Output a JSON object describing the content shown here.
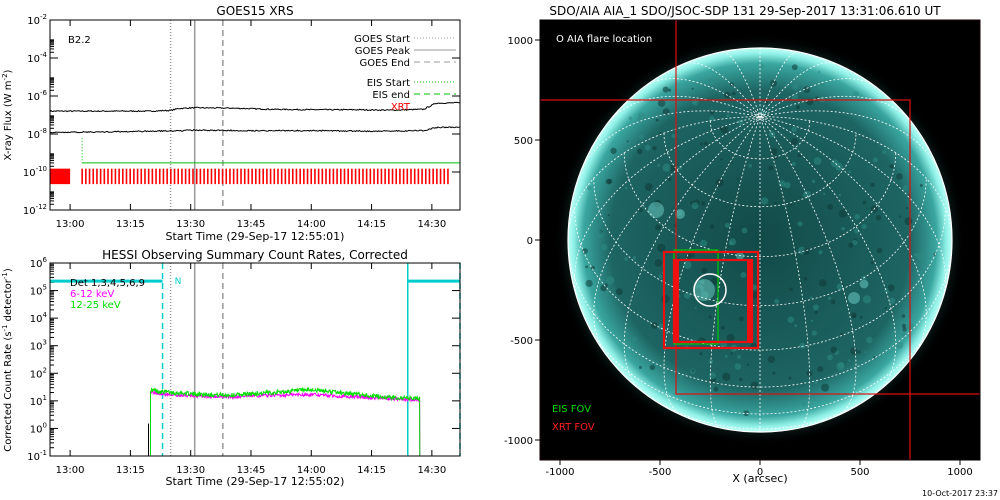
{
  "footer_timestamp": "10-Oct-2017 23:37",
  "chart_data": [
    {
      "id": "goes",
      "type": "line",
      "title": "GOES15 XRS",
      "xlabel": "Start Time (29-Sep-17 12:55:01)",
      "ylabel_main": "X-ray Flux (W m",
      "ylabel_sup": "-2",
      "ylabel_end": ")",
      "flare_class": "B2.2",
      "x_range": [
        "12:55",
        "14:37"
      ],
      "ylim": [
        1e-12,
        0.01
      ],
      "y_scale": "log",
      "x_ticks": [
        "13:00",
        "13:15",
        "13:30",
        "13:45",
        "14:00",
        "14:15",
        "14:30"
      ],
      "y_ticks": [
        {
          "base": "10",
          "exp": "-2"
        },
        {
          "base": "10",
          "exp": "-4"
        },
        {
          "base": "10",
          "exp": "-6"
        },
        {
          "base": "10",
          "exp": "-8"
        },
        {
          "base": "10",
          "exp": "-10"
        },
        {
          "base": "10",
          "exp": "-12"
        }
      ],
      "legend": [
        {
          "label": "GOES Start",
          "style": "dotted",
          "color": "#999999"
        },
        {
          "label": "GOES Peak",
          "style": "solid",
          "color": "#999999"
        },
        {
          "label": "GOES End",
          "style": "dashed",
          "color": "#999999"
        },
        {
          "label": "EIS Start",
          "style": "dotted",
          "color": "#00c000"
        },
        {
          "label": "EIS end",
          "style": "dashed",
          "color": "#00c000"
        },
        {
          "label": "XRT",
          "style": "text",
          "color": "#ff0000"
        }
      ],
      "vertical_markers": [
        {
          "time": "13:25",
          "style": "dotted",
          "color": "#999999"
        },
        {
          "time": "13:31",
          "style": "solid",
          "color": "#999999"
        },
        {
          "time": "13:38",
          "style": "dashed",
          "color": "#999999"
        }
      ],
      "series": [
        {
          "color": "#000000",
          "x": [
            "12:55",
            "13:20",
            "13:25",
            "13:27",
            "13:31",
            "13:40",
            "13:50",
            "14:00",
            "14:10",
            "14:20",
            "14:28",
            "14:31",
            "14:37"
          ],
          "values": [
            1.6e-07,
            1.6e-07,
            1.75e-07,
            2.2e-07,
            2.4e-07,
            2.3e-07,
            2e-07,
            1.9e-07,
            1.9e-07,
            1.8e-07,
            2e-07,
            4.2e-07,
            4.4e-07
          ]
        },
        {
          "color": "#000000",
          "x": [
            "12:55",
            "13:10",
            "13:20",
            "13:28",
            "13:31",
            "13:45",
            "14:00",
            "14:15",
            "14:28",
            "14:31",
            "14:37"
          ],
          "values": [
            1.2e-08,
            1.3e-08,
            1.4e-08,
            1.5e-08,
            1.6e-08,
            1.5e-08,
            1.5e-08,
            1.4e-08,
            1.5e-08,
            2.2e-08,
            2.3e-08
          ]
        }
      ],
      "eis_line": {
        "start": "13:03",
        "end": "14:37",
        "value": 3e-10,
        "color": "#00c000"
      },
      "xrt_bars": {
        "start": "13:03",
        "end": "14:34",
        "count": 100,
        "color": "#ff0000",
        "extra": [
          {
            "start": "12:55",
            "end": "13:00"
          }
        ]
      }
    },
    {
      "id": "hessi",
      "type": "line",
      "title": "HESSI Observing Summary Count Rates, Corrected",
      "xlabel": "Start Time (29-Sep-17 12:55:02)",
      "ylabel_main": "Corrected Count Rate (s",
      "ylabel_sup": "-1",
      "ylabel_mid": " detector",
      "ylabel_sup2": "-1",
      "ylabel_end": ")",
      "x_range": [
        "12:55",
        "14:37"
      ],
      "ylim": [
        0.1,
        1000000.0
      ],
      "y_scale": "log",
      "x_ticks": [
        "13:00",
        "13:15",
        "13:30",
        "13:45",
        "14:00",
        "14:15",
        "14:30"
      ],
      "y_ticks": [
        {
          "base": "10",
          "exp": "6"
        },
        {
          "base": "10",
          "exp": "5"
        },
        {
          "base": "10",
          "exp": "4"
        },
        {
          "base": "10",
          "exp": "3"
        },
        {
          "base": "10",
          "exp": "2"
        },
        {
          "base": "10",
          "exp": "1"
        },
        {
          "base": "10",
          "exp": "0"
        },
        {
          "base": "10",
          "exp": "-1"
        }
      ],
      "legend": [
        {
          "label": "Det 1,3,4,5,6,9",
          "color": "#000000"
        },
        {
          "label": "6-12 keV",
          "color": "#ff00ff"
        },
        {
          "label": "12-25 keV",
          "color": "#00dd00"
        }
      ],
      "annotation": "N",
      "vertical_markers": [
        {
          "time": "13:25",
          "style": "dotted",
          "color": "#999999"
        },
        {
          "time": "13:31",
          "style": "solid",
          "color": "#999999"
        },
        {
          "time": "13:38",
          "style": "dashed",
          "color": "#999999"
        },
        {
          "time": "13:23",
          "style": "dashed",
          "color": "#00cccc"
        },
        {
          "time": "14:24",
          "style": "solid",
          "color": "#00cccc"
        },
        {
          "time": "14:37",
          "style": "dashed",
          "color": "#00cccc"
        }
      ],
      "night_segments": [
        {
          "start": "12:55",
          "end": "13:23",
          "value": 220000.0,
          "color": "#00cccc"
        },
        {
          "start": "14:24",
          "end": "14:37",
          "value": 220000.0,
          "color": "#00cccc"
        }
      ],
      "series": [
        {
          "name": "12-25 keV",
          "color": "#00dd00",
          "x": [
            "13:20",
            "13:22",
            "13:30",
            "13:40",
            "13:50",
            "14:00",
            "14:10",
            "14:20",
            "14:27"
          ],
          "values": [
            25,
            22,
            18,
            16,
            20,
            25,
            18,
            13,
            12
          ]
        },
        {
          "name": "6-12 keV",
          "color": "#ff00ff",
          "x": [
            "13:20",
            "13:22",
            "13:30",
            "13:40",
            "13:50",
            "14:00",
            "14:10",
            "14:20",
            "14:27"
          ],
          "values": [
            22,
            18,
            15,
            14,
            16,
            17,
            14,
            12,
            11
          ]
        }
      ]
    },
    {
      "id": "aia",
      "type": "image",
      "title": "SDO/AIA AIA_1 SDO/JSOC-SDP 131 29-Sep-2017 13:31:06.610 UT",
      "xlabel": "X (arcsec)",
      "xlim": [
        -1100,
        1100
      ],
      "ylim": [
        -1100,
        1100
      ],
      "x_ticks": [
        "-1000",
        "-500",
        "0",
        "500",
        "1000"
      ],
      "y_ticks": [
        "1000",
        "500",
        "0",
        "-500",
        "-1000"
      ],
      "sun_radius_arcsec": 960,
      "labels": [
        {
          "text": "O AIA flare location",
          "color": "#ffffff"
        },
        {
          "text": "EIS FOV",
          "color": "#00dd00"
        },
        {
          "text": "XRT FOV",
          "color": "#ff2020"
        }
      ],
      "flare_circle": {
        "x": -250,
        "y": -250,
        "r": 80
      },
      "eis_fov": {
        "x0": -430,
        "x1": -210,
        "y0": -520,
        "y1": -50
      },
      "xrt_fov_large": [
        {
          "x0": -1100,
          "x1": 750,
          "y0": -1100,
          "y1": 700
        },
        {
          "x0": -420,
          "x1": 1100,
          "y0": -770,
          "y1": 1100
        }
      ],
      "xrt_fov_small": [
        {
          "x0": -480,
          "x1": -10,
          "y0": -540,
          "y1": -60
        },
        {
          "x0": -430,
          "x1": -40,
          "y0": -510,
          "y1": -100
        }
      ]
    }
  ]
}
